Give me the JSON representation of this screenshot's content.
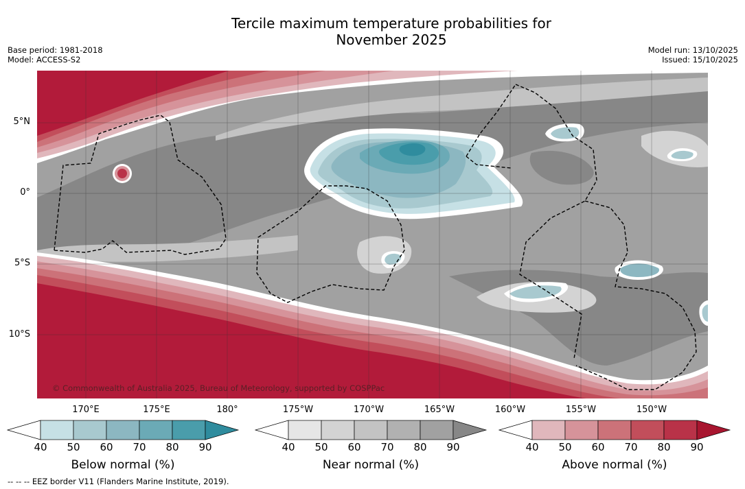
{
  "title_line1": "Tercile maximum temperature probabilities for",
  "title_line2": "November 2025",
  "base_period": "Base period: 1981-2018",
  "model": "Model: ACCESS-S2",
  "model_run": "Model run: 13/10/2025",
  "issued": "Issued: 15/10/2025",
  "latitude_labels": [
    "5°N",
    "0°",
    "5°S",
    "10°S"
  ],
  "longitude_labels": [
    "170°E",
    "175°E",
    "180°",
    "175°W",
    "170°W",
    "165°W",
    "160°W",
    "155°W",
    "150°W"
  ],
  "copyright": "© Commonwealth of Australia 2025, Bureau of Meteorology, supported by COSPPac",
  "colorbars": [
    {
      "label": "Below normal (%)",
      "ticks": [
        "40",
        "50",
        "60",
        "70",
        "80",
        "90"
      ],
      "colors": [
        "#ffffff",
        "#c6e0e5",
        "#a8c9cf",
        "#8cb7c1",
        "#6baab6",
        "#4a9dab",
        "#2f8c9e"
      ]
    },
    {
      "label": "Near normal (%)",
      "ticks": [
        "40",
        "50",
        "60",
        "70",
        "80",
        "90"
      ],
      "colors": [
        "#ffffff",
        "#e6e6e6",
        "#d3d3d3",
        "#c3c3c3",
        "#b1b1b1",
        "#a1a1a1",
        "#878787"
      ]
    },
    {
      "label": "Above normal (%)",
      "ticks": [
        "40",
        "50",
        "60",
        "70",
        "80",
        "90"
      ],
      "colors": [
        "#ffffff",
        "#e0b7bc",
        "#d6939a",
        "#cc7279",
        "#c24e5b",
        "#b93248",
        "#a8152f"
      ]
    }
  ],
  "footnote": "--  --  -- EEZ border V11 (Flanders Marine Institute, 2019)."
}
